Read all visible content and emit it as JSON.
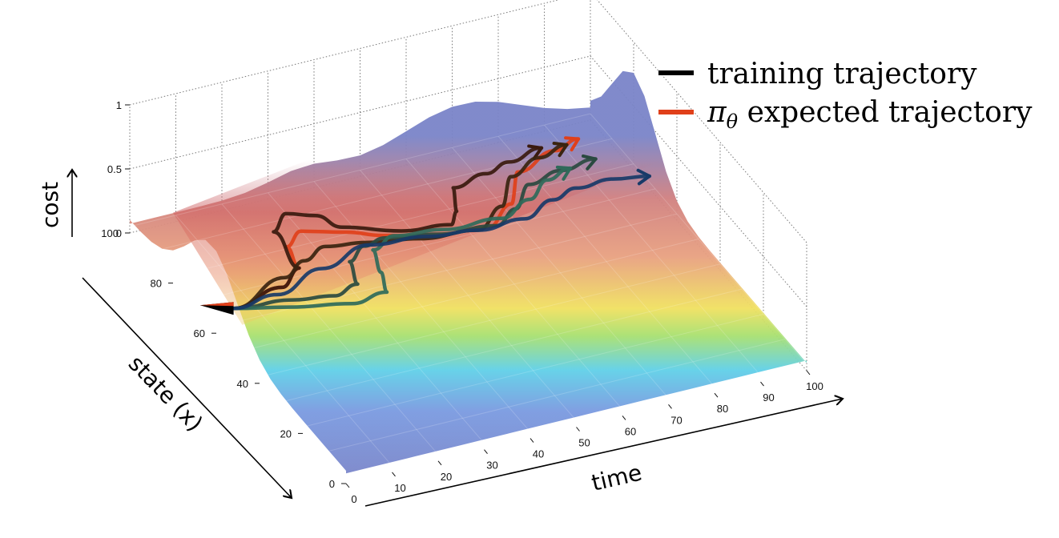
{
  "chart_data": {
    "type": "surface",
    "xlabel": "time",
    "ylabel": "state (x)",
    "zlabel": "cost",
    "xlim": [
      0,
      100
    ],
    "ylim": [
      0,
      100
    ],
    "zlim": [
      0,
      1
    ],
    "x_ticks": [
      "0",
      "10",
      "20",
      "30",
      "40",
      "50",
      "60",
      "70",
      "80",
      "90",
      "100"
    ],
    "y_ticks": [
      "0",
      "20",
      "40",
      "60",
      "80",
      "100"
    ],
    "z_ticks": [
      "0",
      "0.5",
      "1"
    ],
    "grid": true,
    "colormap": "jet",
    "legend": {
      "placement": "top-right",
      "entries": [
        {
          "label": "training trajectory",
          "color": "#000000"
        },
        {
          "label_symbol": "π",
          "label_subscript": "θ",
          "label_rest": " expected trajectory",
          "color": "#e0401a"
        }
      ]
    },
    "series": [
      {
        "role": "expected",
        "color": "#e0401a",
        "points": [
          [
            0,
            52
          ],
          [
            12,
            55
          ],
          [
            18,
            60
          ],
          [
            19,
            68
          ],
          [
            24,
            72
          ],
          [
            32,
            68
          ],
          [
            38,
            64
          ],
          [
            46,
            60
          ],
          [
            58,
            58
          ],
          [
            66,
            64
          ],
          [
            72,
            74
          ],
          [
            82,
            78
          ],
          [
            88,
            80
          ]
        ]
      },
      {
        "role": "training",
        "color": "#3a1a0e",
        "points": [
          [
            0,
            52
          ],
          [
            12,
            55
          ],
          [
            18,
            60
          ],
          [
            19,
            74
          ],
          [
            24,
            79
          ],
          [
            29,
            76
          ],
          [
            32,
            70
          ],
          [
            42,
            64
          ],
          [
            52,
            62
          ],
          [
            55,
            66
          ],
          [
            58,
            74
          ],
          [
            66,
            76
          ],
          [
            72,
            78
          ],
          [
            80,
            80
          ]
        ]
      },
      {
        "role": "training",
        "color": "#3a2410",
        "points": [
          [
            0,
            52
          ],
          [
            14,
            58
          ],
          [
            20,
            62
          ],
          [
            26,
            65
          ],
          [
            34,
            63
          ],
          [
            44,
            60
          ],
          [
            56,
            58
          ],
          [
            64,
            64
          ],
          [
            70,
            73
          ],
          [
            78,
            77
          ],
          [
            85,
            79
          ]
        ]
      },
      {
        "role": "training",
        "color": "#2a4a40",
        "points": [
          [
            0,
            52
          ],
          [
            12,
            50
          ],
          [
            20,
            48
          ],
          [
            26,
            50
          ],
          [
            28,
            58
          ],
          [
            33,
            62
          ],
          [
            38,
            63
          ],
          [
            48,
            60
          ],
          [
            60,
            58
          ],
          [
            66,
            62
          ],
          [
            72,
            69
          ],
          [
            80,
            71
          ],
          [
            88,
            72
          ]
        ]
      },
      {
        "role": "training",
        "color": "#2f6a5a",
        "points": [
          [
            0,
            52
          ],
          [
            10,
            48
          ],
          [
            22,
            44
          ],
          [
            30,
            45
          ],
          [
            32,
            52
          ],
          [
            34,
            60
          ],
          [
            40,
            63
          ],
          [
            50,
            61
          ],
          [
            62,
            60
          ],
          [
            70,
            64
          ],
          [
            76,
            69
          ],
          [
            82,
            71
          ]
        ]
      },
      {
        "role": "training",
        "color": "#183a68",
        "points": [
          [
            0,
            52
          ],
          [
            10,
            53
          ],
          [
            22,
            58
          ],
          [
            34,
            62
          ],
          [
            46,
            60
          ],
          [
            56,
            58
          ],
          [
            66,
            58
          ],
          [
            74,
            62
          ],
          [
            80,
            64
          ],
          [
            88,
            64
          ],
          [
            95,
            62
          ]
        ]
      }
    ]
  }
}
